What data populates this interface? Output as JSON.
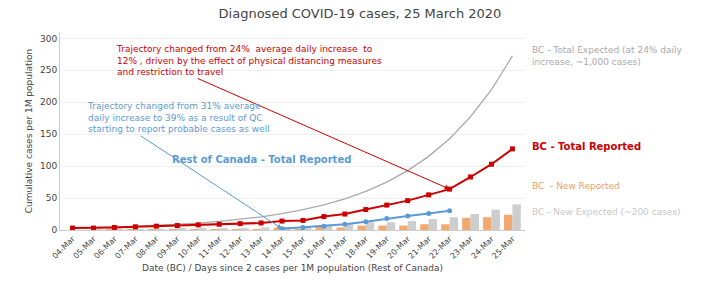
{
  "chart_data": {
    "type": "bar",
    "title": "Diagnosed COVID-19 cases, 25 March 2020",
    "xlabel": "Date (BC) / Days since 2 cases per 1M population (Rest of Canada)",
    "ylabel": "Cumulative cases per 1M population",
    "categories": [
      "04-Mar",
      "05-Mar",
      "06-Mar",
      "07-Mar",
      "08-Mar",
      "09-Mar",
      "10-Mar",
      "11-Mar",
      "12-Mar",
      "13-Mar",
      "14-Mar",
      "15-Mar",
      "16-Mar",
      "17-Mar",
      "18-Mar",
      "19-Mar",
      "20-Mar",
      "21-Mar",
      "22-Mar",
      "23-Mar",
      "24-Mar",
      "25-Mar"
    ],
    "series": [
      {
        "name": "BC  - New Reported",
        "type": "bar",
        "color": "#f0a060",
        "values": [
          0,
          0,
          1,
          1,
          1,
          1,
          1,
          1,
          1,
          1,
          3,
          1,
          6,
          4,
          7,
          7,
          7,
          9,
          9,
          19,
          20,
          24
        ]
      },
      {
        "name": "BC - New Expected (~200 cases)",
        "type": "bar",
        "color": "#c8c8c8",
        "values": [
          0,
          1,
          1,
          1,
          1,
          2,
          2,
          2,
          3,
          4,
          5,
          6,
          8,
          9,
          12,
          12,
          14,
          17,
          20,
          25,
          32,
          40
        ]
      },
      {
        "name": "BC - Total Expected (at 24% daily\nincrease, ~1,000 cases)",
        "type": "line",
        "color": "#aaaaaa",
        "line_style": "solid",
        "values": [
          3,
          3.7,
          4.6,
          5.7,
          7.1,
          8.8,
          10.9,
          13.5,
          16.7,
          20.7,
          25.6,
          31.8,
          39.4,
          48.8,
          60.5,
          75.0,
          93.0,
          115.3,
          143.0,
          177.3,
          219.8,
          272.5
        ]
      },
      {
        "name": "Rest of Canada - Total Reported",
        "type": "line",
        "color": "#5b9bd5",
        "marker": "circle",
        "line_style": "solid",
        "values": [
          null,
          null,
          null,
          null,
          null,
          null,
          null,
          null,
          null,
          null,
          2,
          4,
          6,
          9,
          13,
          18,
          22,
          26,
          30,
          null,
          null,
          null
        ]
      },
      {
        "name": "BC - Total Reported",
        "type": "line",
        "color": "#cc0000",
        "marker": "square",
        "line_style": "solid",
        "values": [
          3,
          3,
          4,
          5,
          6,
          7,
          8,
          9,
          10,
          11,
          14,
          15,
          21,
          25,
          32,
          39,
          46,
          55,
          64,
          83,
          103,
          127
        ]
      }
    ],
    "annotations": [
      {
        "text": "Trajectory changed from 24%  average daily increase  to\n12% , driven by the effect of physical distancing measures\nand restriction to travel",
        "color": "#cc0000"
      },
      {
        "text": "Trajectory changed from 31% average\ndaily increase to 39% as a result of QC\nstarting to report probable cases as well",
        "color": "#5b9bd5"
      }
    ],
    "ylim": [
      0,
      310
    ],
    "yticks": [
      0,
      50,
      100,
      150,
      200,
      250,
      300
    ],
    "grid": true
  }
}
